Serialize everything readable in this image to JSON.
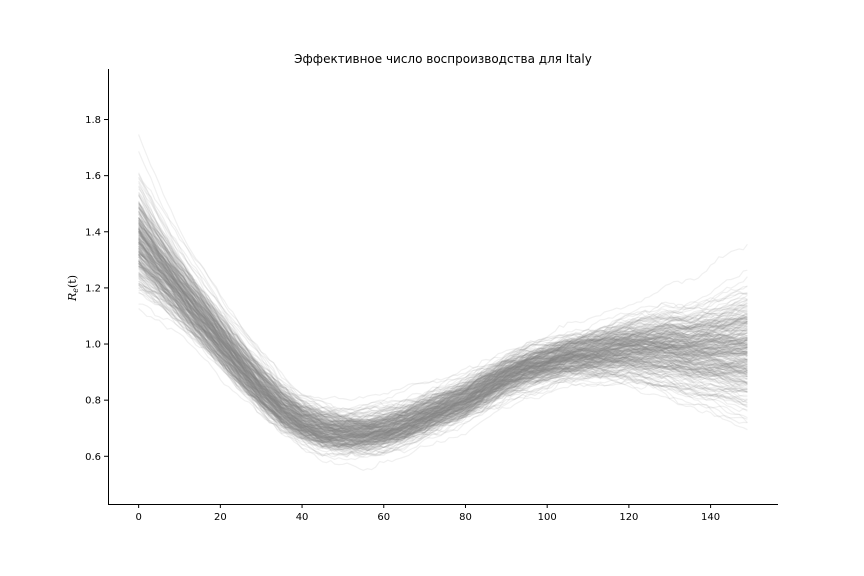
{
  "chart_data": {
    "type": "line",
    "title": "Эффективное число воспроизводства для Italy",
    "xlabel": "",
    "ylabel": {
      "main": "R",
      "subscript": "e",
      "suffix": "(t)"
    },
    "xlim": [
      -7.5,
      156.5
    ],
    "ylim": [
      0.43,
      1.98
    ],
    "x_ticks": [
      0,
      20,
      40,
      60,
      80,
      100,
      120,
      140
    ],
    "y_ticks": [
      0.6,
      0.8,
      1.0,
      1.2,
      1.4,
      1.6,
      1.8
    ],
    "y_tick_labels": [
      "0.6",
      "0.8",
      "1.0",
      "1.2",
      "1.4",
      "1.6",
      "1.8"
    ],
    "grid": false,
    "line_color": "#808080",
    "line_alpha": 0.12,
    "sample_count": 300,
    "x_range": [
      0,
      149
    ],
    "median_curve": {
      "x": [
        0,
        5,
        10,
        15,
        20,
        25,
        30,
        35,
        40,
        45,
        50,
        55,
        60,
        65,
        70,
        75,
        80,
        85,
        90,
        95,
        100,
        105,
        110,
        115,
        120,
        125,
        130,
        135,
        140,
        145,
        149
      ],
      "y": [
        1.37,
        1.28,
        1.19,
        1.1,
        1.01,
        0.92,
        0.84,
        0.77,
        0.72,
        0.69,
        0.68,
        0.68,
        0.69,
        0.71,
        0.74,
        0.77,
        0.8,
        0.84,
        0.88,
        0.91,
        0.93,
        0.95,
        0.96,
        0.97,
        0.98,
        0.98,
        0.98,
        0.97,
        0.97,
        0.97,
        0.97
      ]
    },
    "spread_curve": {
      "x": [
        0,
        5,
        10,
        20,
        30,
        40,
        50,
        60,
        70,
        80,
        90,
        100,
        110,
        120,
        130,
        140,
        149
      ],
      "y": [
        0.16,
        0.13,
        0.11,
        0.09,
        0.08,
        0.07,
        0.07,
        0.07,
        0.07,
        0.07,
        0.07,
        0.07,
        0.08,
        0.1,
        0.13,
        0.16,
        0.19
      ]
    }
  }
}
